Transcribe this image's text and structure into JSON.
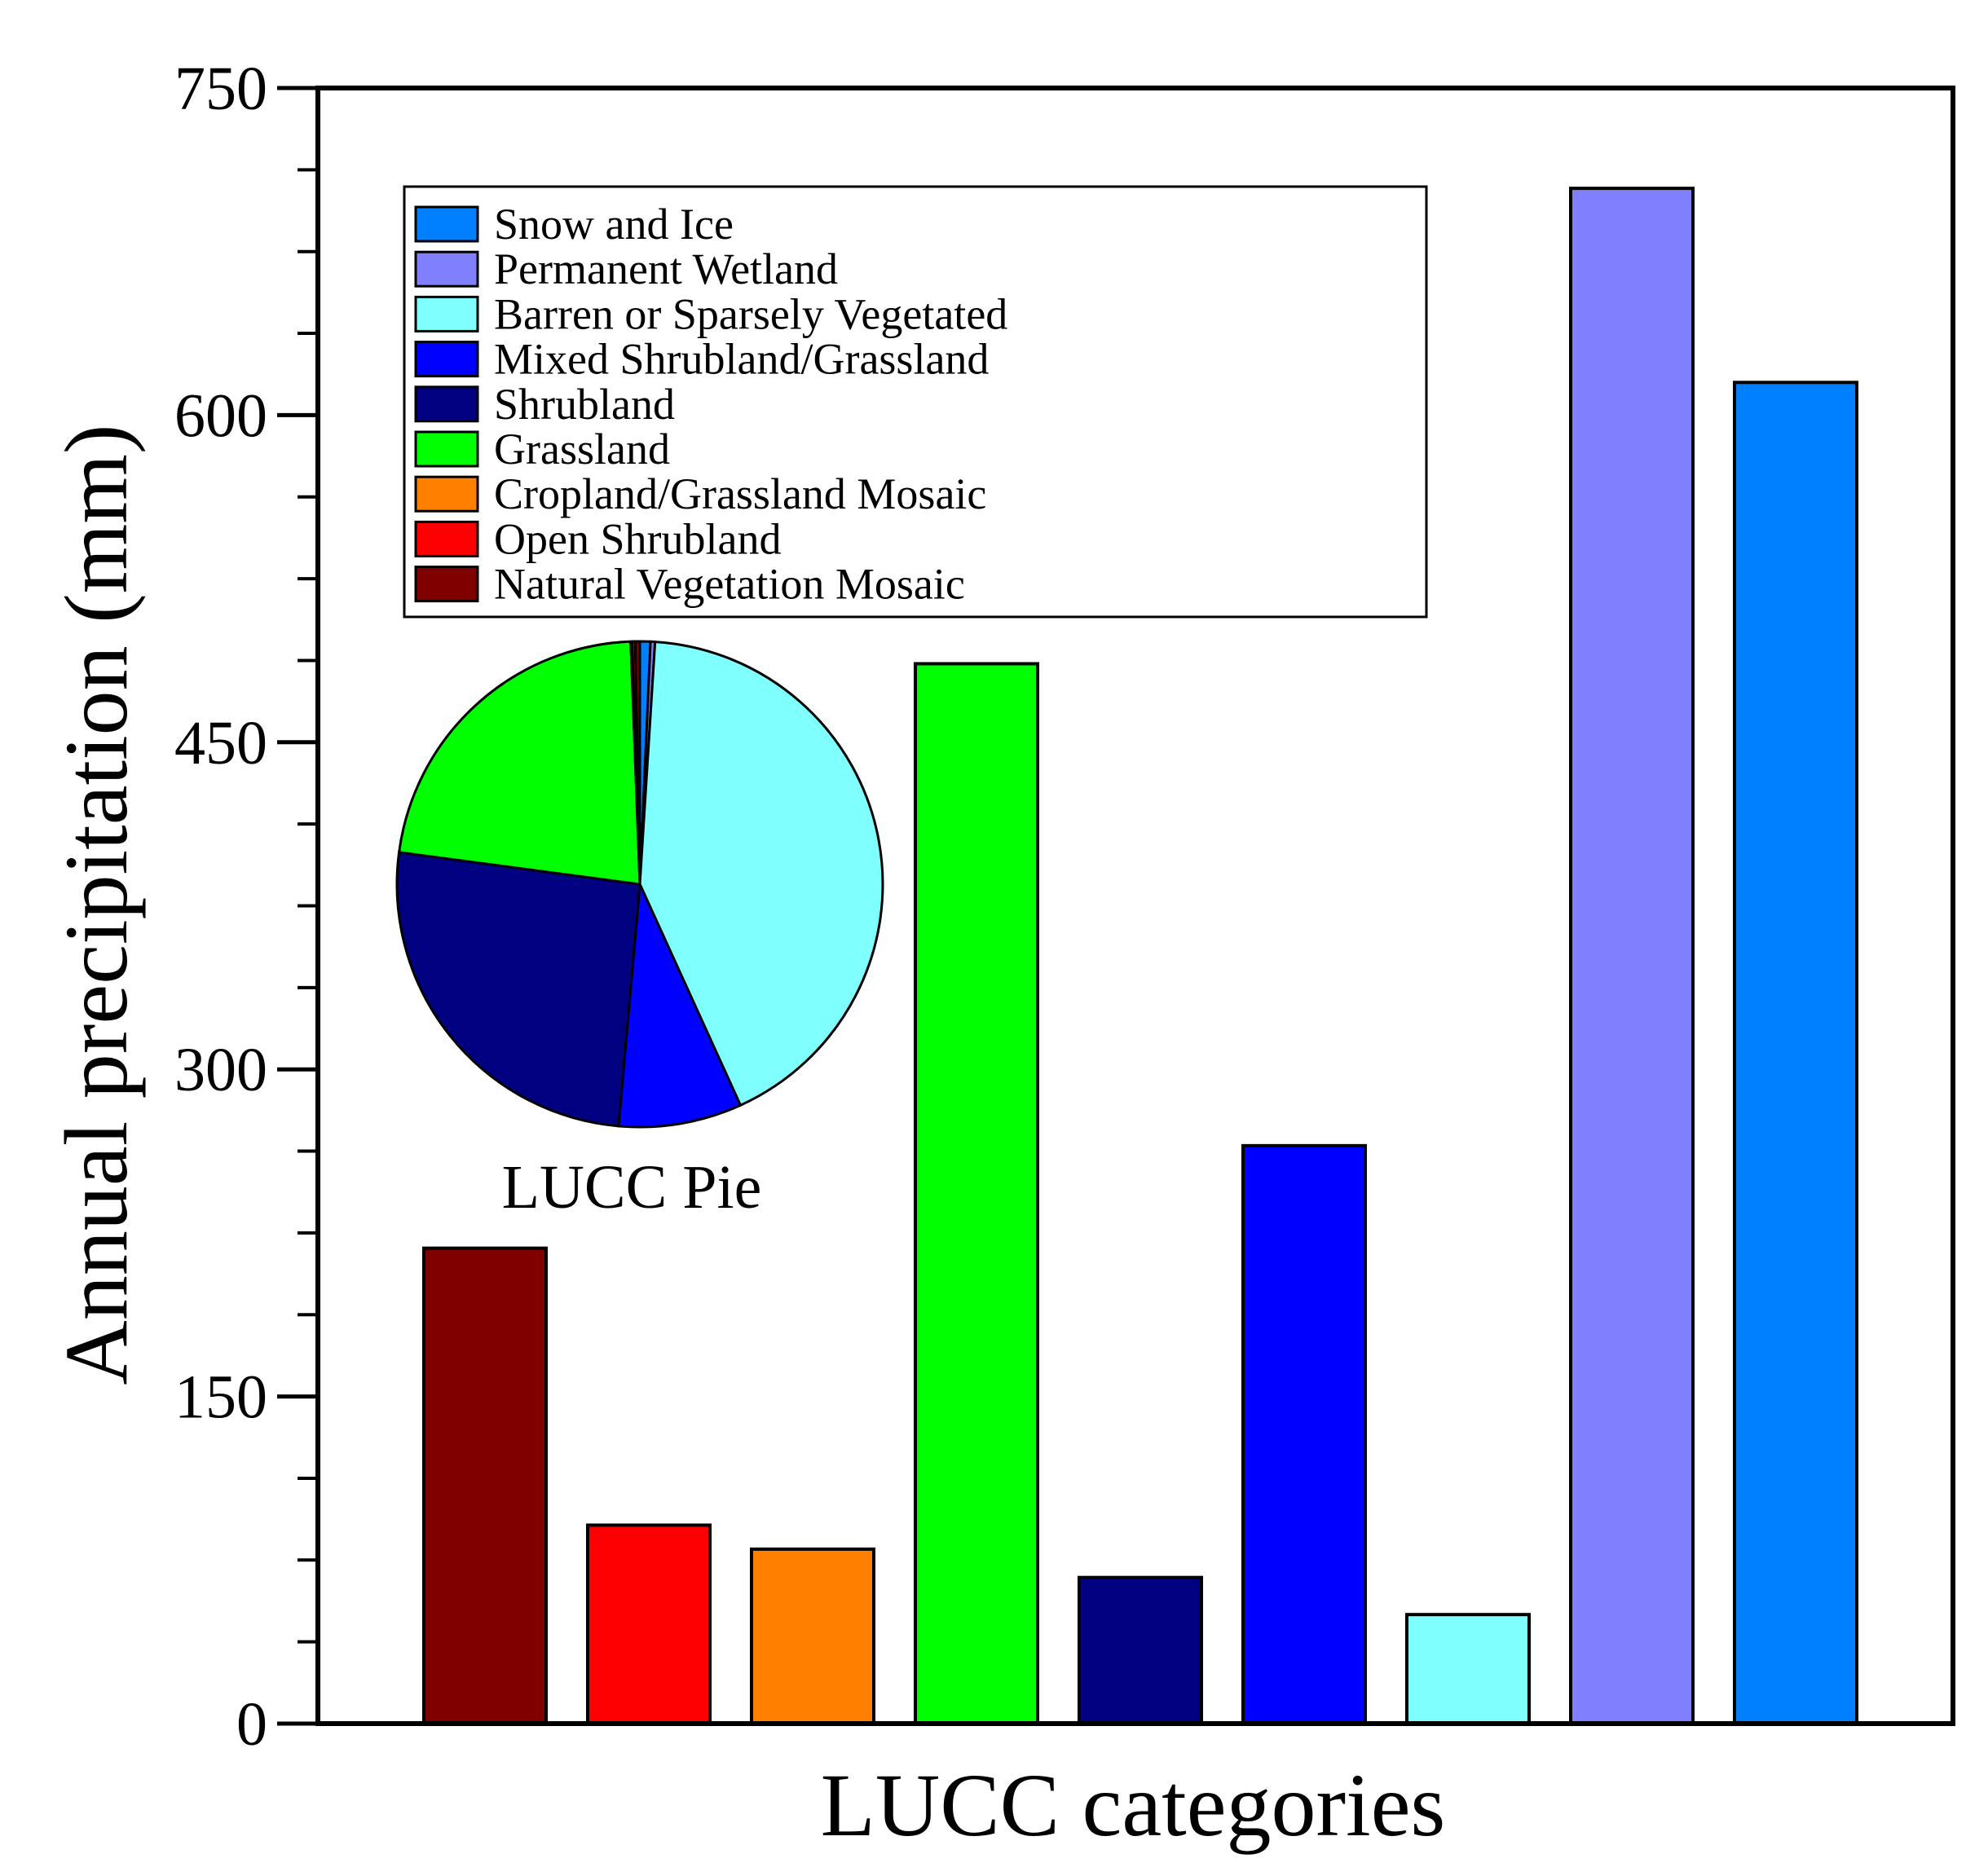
{
  "chart_data": {
    "type": "bar",
    "title": "",
    "xlabel": "LUCC categories",
    "ylabel": "Annual precipitation (mm)",
    "ylim": [
      0,
      750
    ],
    "y_ticks": [
      0,
      150,
      300,
      450,
      600,
      750
    ],
    "grid": false,
    "legend_position": "top-left (inside plot)",
    "categories": [
      "Natural Vegetation Mosaic",
      "Open Shrubland",
      "Cropland/Grassland Mosaic",
      "Grassland",
      "Shrubland",
      "Mixed Shrubland/Grassland",
      "Barren or Sparsely Vegetated",
      "Permanent Wetland",
      "Snow and Ice"
    ],
    "values": [
      218,
      91,
      80,
      486,
      67,
      265,
      50,
      704,
      615
    ],
    "colors": [
      "#800000",
      "#ff0000",
      "#ff8000",
      "#00ff00",
      "#000080",
      "#0000ff",
      "#80ffff",
      "#8080ff",
      "#0080ff"
    ],
    "legend": [
      {
        "label": "Snow and Ice",
        "color": "#0080ff"
      },
      {
        "label": "Permanent Wetland",
        "color": "#8080ff"
      },
      {
        "label": "Barren or Sparsely Vegetated",
        "color": "#80ffff"
      },
      {
        "label": "Mixed Shrubland/Grassland",
        "color": "#0000ff"
      },
      {
        "label": "Shrubland",
        "color": "#000080"
      },
      {
        "label": "Grassland",
        "color": "#00ff00"
      },
      {
        "label": "Cropland/Grassland Mosaic",
        "color": "#ff8000"
      },
      {
        "label": "Open Shrubland",
        "color": "#ff0000"
      },
      {
        "label": "Natural Vegetation Mosaic",
        "color": "#800000"
      }
    ],
    "inset_pie": {
      "type": "pie",
      "title": "LUCC Pie",
      "slices": [
        {
          "label": "Snow and Ice",
          "percent": 0.7,
          "color": "#0080ff"
        },
        {
          "label": "Permanent Wetland",
          "percent": 0.3,
          "color": "#8080ff"
        },
        {
          "label": "Barren or Sparsely Vegetated",
          "percent": 42.2,
          "color": "#80ffff"
        },
        {
          "label": "Mixed Shrubland/Grassland",
          "percent": 8.2,
          "color": "#0000ff"
        },
        {
          "label": "Shrubland",
          "percent": 25.7,
          "color": "#000080"
        },
        {
          "label": "Grassland",
          "percent": 22.3,
          "color": "#00ff00"
        },
        {
          "label": "Cropland/Grassland Mosaic",
          "percent": 0.1,
          "color": "#ff8000"
        },
        {
          "label": "Open Shrubland",
          "percent": 0.2,
          "color": "#ff0000"
        },
        {
          "label": "Natural Vegetation Mosaic",
          "percent": 0.3,
          "color": "#800000"
        }
      ]
    }
  }
}
